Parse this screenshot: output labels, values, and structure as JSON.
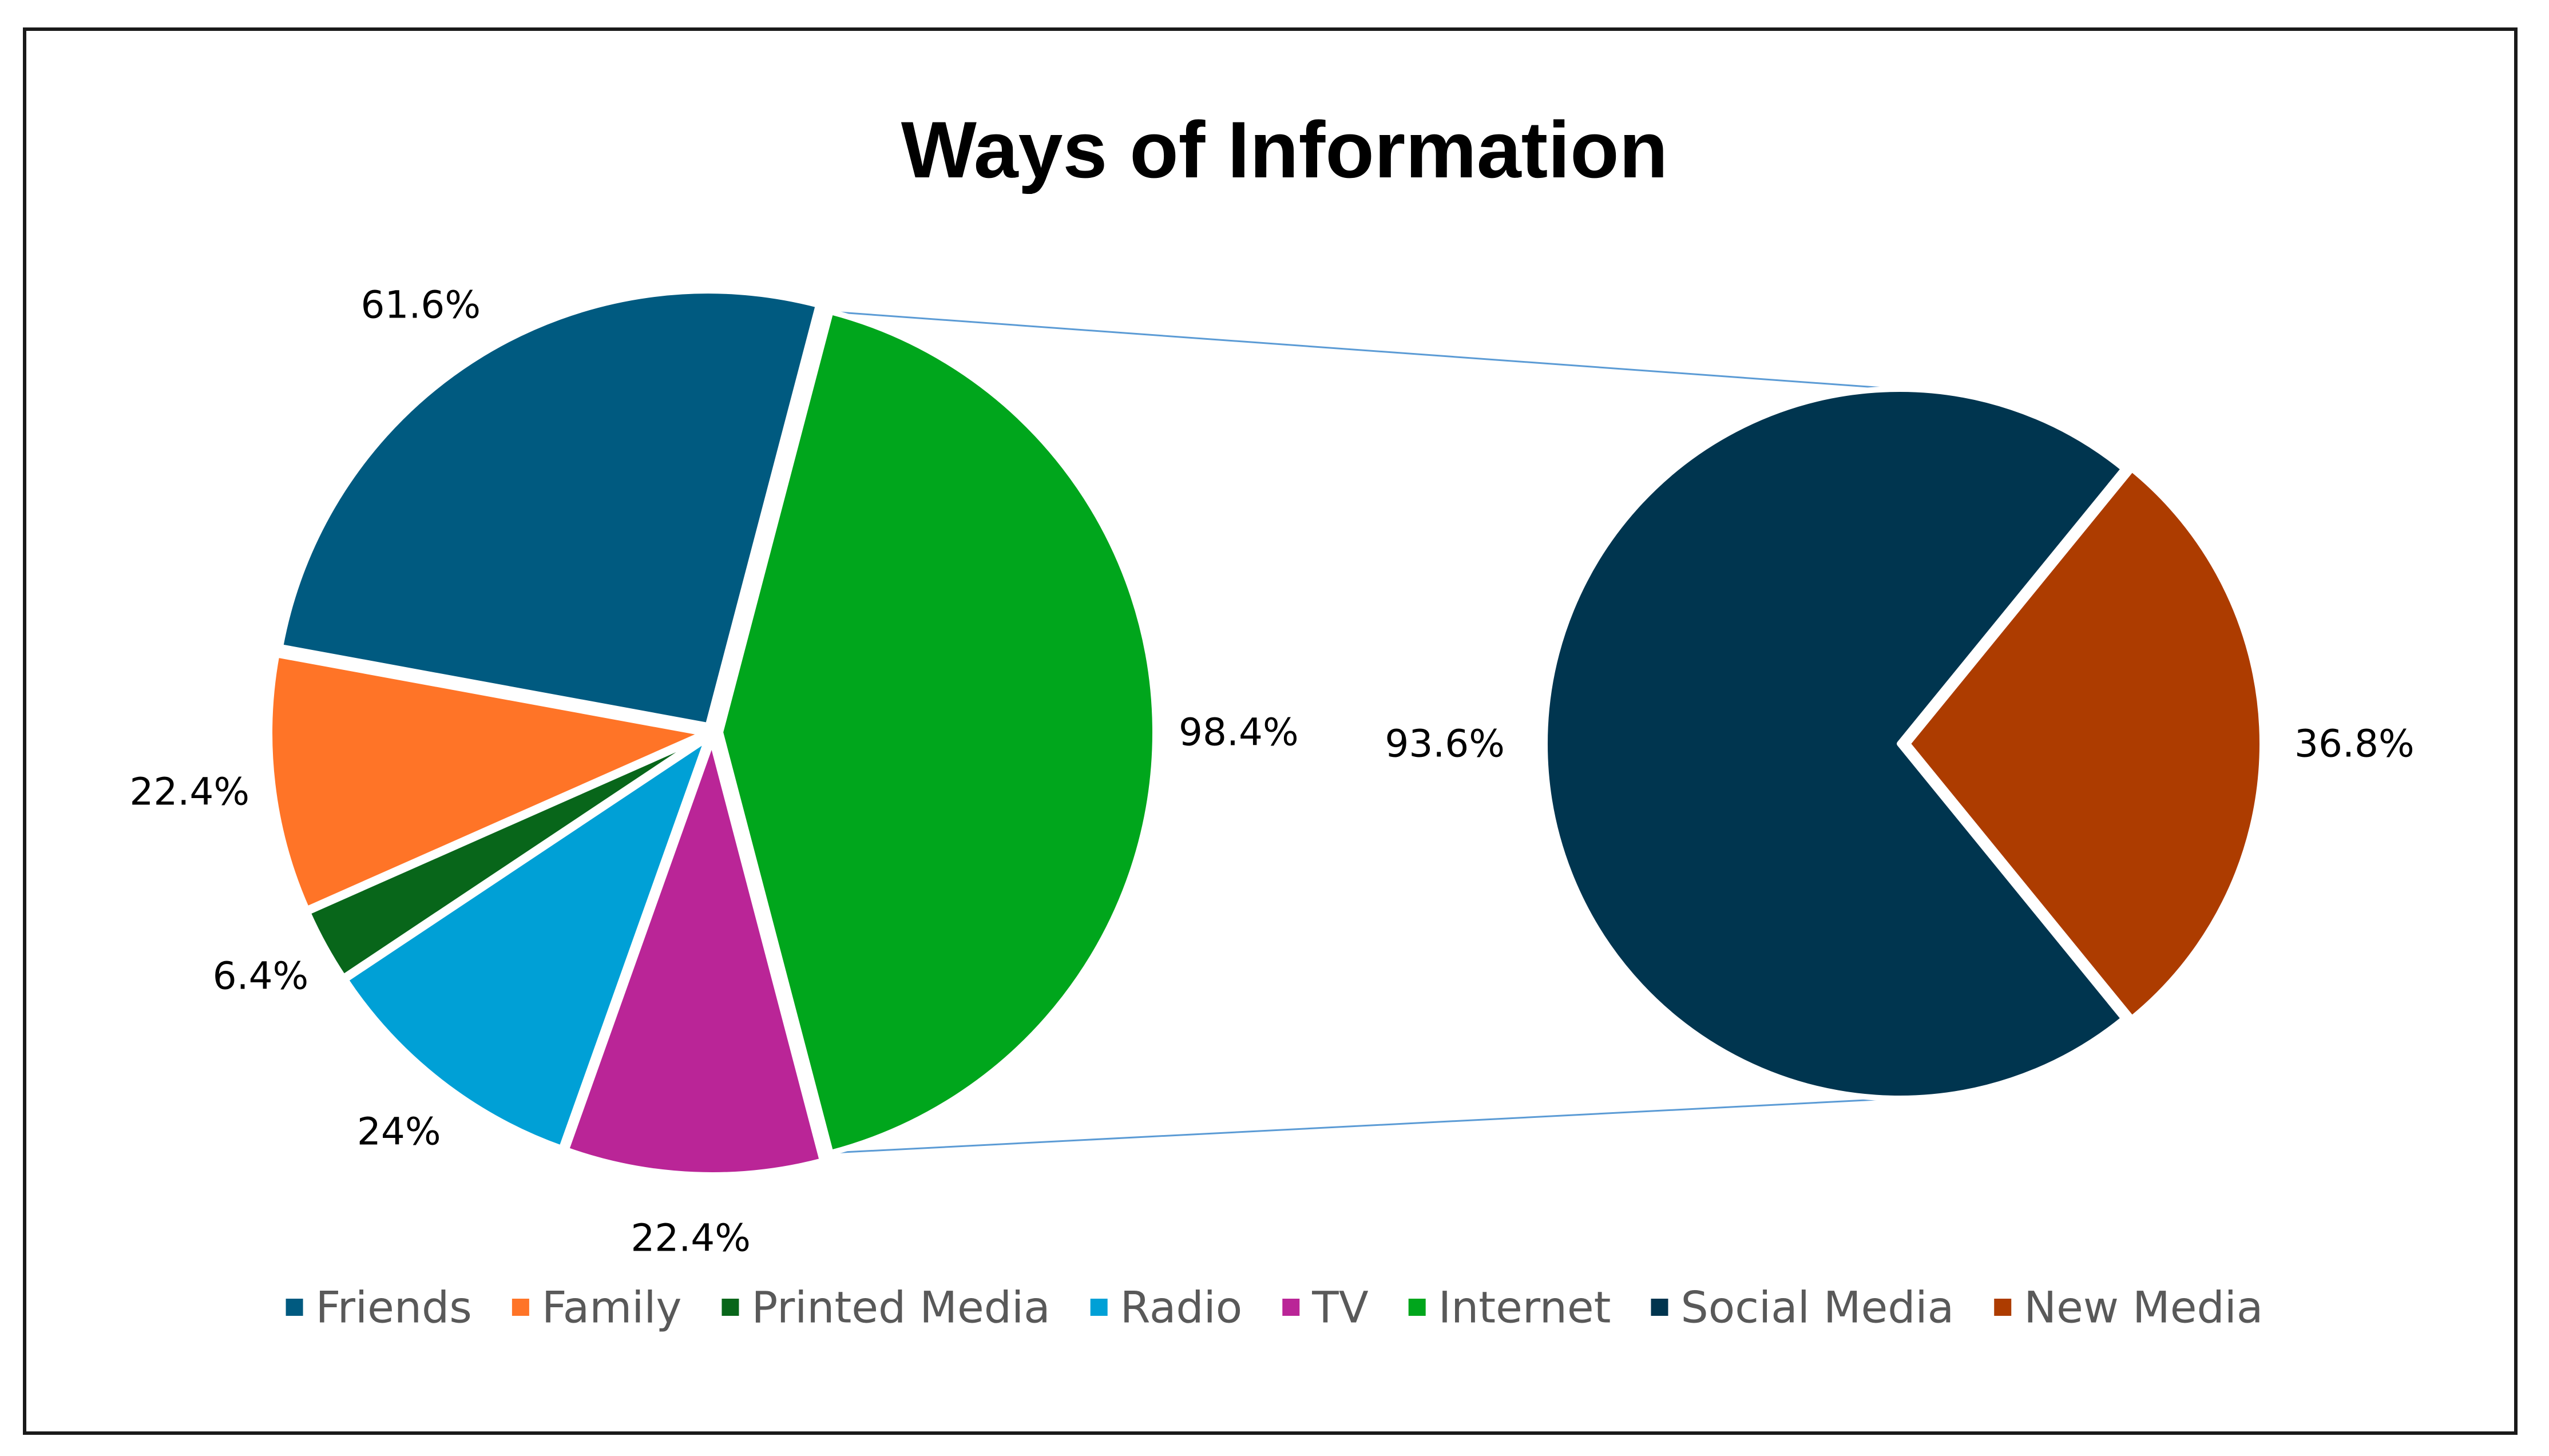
{
  "chart_data": {
    "type": "pie",
    "subtype": "pie-of-pie",
    "title": "Ways of Information",
    "primary_pie": {
      "slices": [
        {
          "name": "Friends",
          "value": 61.6,
          "label": "61.6%",
          "color": "#005A80"
        },
        {
          "name": "Internet",
          "value": 98.4,
          "label": "98.4%",
          "color": "#00A61C"
        },
        {
          "name": "TV",
          "value": 22.4,
          "label": "22.4%",
          "color": "#BA2597"
        },
        {
          "name": "Radio",
          "value": 24,
          "label": "24%",
          "color": "#00A0D6"
        },
        {
          "name": "Printed Media",
          "value": 6.4,
          "label": "6.4%",
          "color": "#08661A"
        },
        {
          "name": "Family",
          "value": 22.4,
          "label": "22.4%",
          "color": "#FF7427"
        }
      ]
    },
    "secondary_pie": {
      "of_slice": "Internet",
      "slices": [
        {
          "name": "Social Media",
          "value": 93.6,
          "label": "93.6%",
          "color": "#00354F"
        },
        {
          "name": "New Media",
          "value": 36.8,
          "label": "36.8%",
          "color": "#AD3C00"
        }
      ]
    },
    "legend": {
      "position": "bottom",
      "entries": [
        {
          "label": "Friends",
          "color": "#005A80"
        },
        {
          "label": "Family",
          "color": "#FF7427"
        },
        {
          "label": "Printed Media",
          "color": "#08661A"
        },
        {
          "label": "Radio",
          "color": "#00A0D6"
        },
        {
          "label": "TV",
          "color": "#BA2597"
        },
        {
          "label": "Internet",
          "color": "#00A61C"
        },
        {
          "label": "Social Media",
          "color": "#00354F"
        },
        {
          "label": "New Media",
          "color": "#AD3C00"
        }
      ]
    },
    "connector_color": "#5B9BD5"
  }
}
